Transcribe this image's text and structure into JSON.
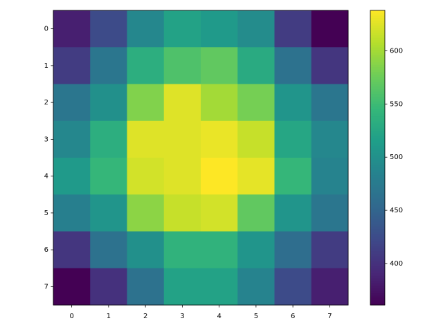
{
  "chart_data": {
    "type": "heatmap",
    "colormap": "viridis",
    "z": [
      [
        385,
        425,
        490,
        520,
        510,
        495,
        410,
        361
      ],
      [
        410,
        470,
        535,
        560,
        570,
        530,
        465,
        405
      ],
      [
        470,
        500,
        585,
        625,
        600,
        580,
        505,
        470
      ],
      [
        490,
        535,
        625,
        625,
        630,
        615,
        525,
        490
      ],
      [
        510,
        545,
        620,
        625,
        638,
        628,
        545,
        485
      ],
      [
        480,
        505,
        590,
        615,
        620,
        570,
        505,
        470
      ],
      [
        405,
        465,
        500,
        540,
        540,
        505,
        460,
        410
      ],
      [
        361,
        400,
        465,
        520,
        520,
        485,
        425,
        385
      ]
    ],
    "xticks": [
      0,
      1,
      2,
      3,
      4,
      5,
      6,
      7
    ],
    "yticks": [
      0,
      1,
      2,
      3,
      4,
      5,
      6,
      7
    ],
    "clim": [
      361,
      638
    ],
    "cticks": [
      400,
      450,
      500,
      550,
      600
    ]
  }
}
